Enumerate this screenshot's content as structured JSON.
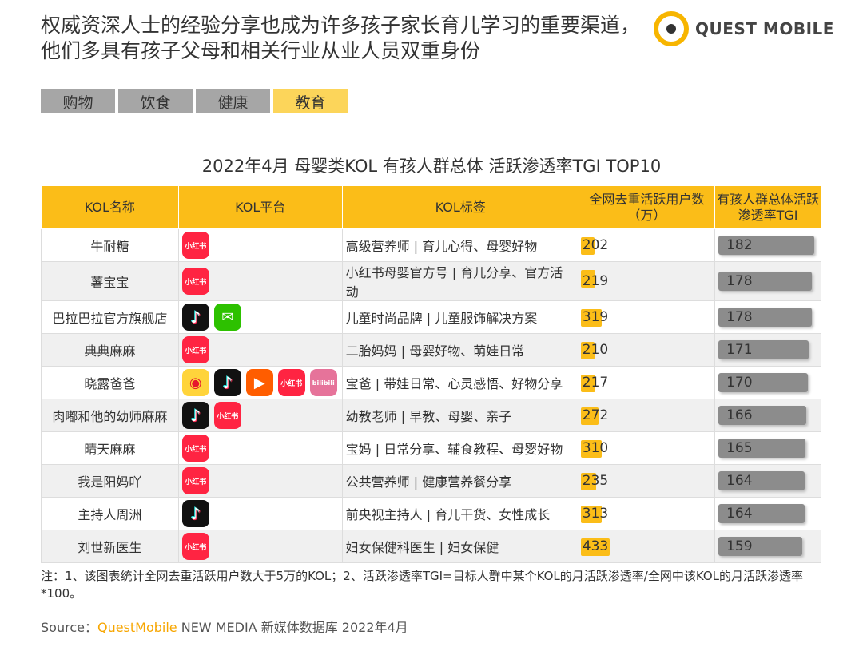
{
  "title": "权威资深人士的经验分享也成为许多孩子家长育儿学习的重要渠道，他们多具有孩子父母和相关行业从业人员双重身份",
  "logo": "QUEST MOBILE",
  "tabs": [
    {
      "label": "购物",
      "active": false
    },
    {
      "label": "饮食",
      "active": false
    },
    {
      "label": "健康",
      "active": false
    },
    {
      "label": "教育",
      "active": true
    }
  ],
  "subtitle": "2022年4月 母婴类KOL 有孩人群总体 活跃渗透率TGI TOP10",
  "headers": {
    "name": "KOL名称",
    "platform": "KOL平台",
    "tags": "KOL标签",
    "users": "全网去重活跃用户数（万）",
    "tgi": "有孩人群总体活跃渗透率TGI"
  },
  "colors": {
    "accent": "#fbbd18",
    "tgi_bar": "#8c8c8c"
  },
  "rows": [
    {
      "name": "牛耐糖",
      "platforms": [
        "xiaohongshu"
      ],
      "tags": "高级营养师 | 育儿心得、母婴好物",
      "users": "202",
      "tgi": "182"
    },
    {
      "name": "薯宝宝",
      "platforms": [
        "xiaohongshu"
      ],
      "tags": "小红书母婴官方号 | 育儿分享、官方活动",
      "users": "219",
      "tgi": "178"
    },
    {
      "name": "巴拉巴拉官方旗舰店",
      "platforms": [
        "douyin",
        "wechat"
      ],
      "tags": "儿童时尚品牌 | 儿童服饰解决方案",
      "users": "319",
      "tgi": "178"
    },
    {
      "name": "典典麻麻",
      "platforms": [
        "xiaohongshu"
      ],
      "tags": "二胎妈妈 | 母婴好物、萌娃日常",
      "users": "210",
      "tgi": "171"
    },
    {
      "name": "晓露爸爸",
      "platforms": [
        "weibo",
        "douyin",
        "kuaishou",
        "xiaohongshu",
        "bilibili"
      ],
      "tags": "宝爸 | 带娃日常、心灵感悟、好物分享",
      "users": "217",
      "tgi": "170"
    },
    {
      "name": "肉嘟和他的幼师麻麻",
      "platforms": [
        "douyin",
        "xiaohongshu"
      ],
      "tags": "幼教老师 | 早教、母婴、亲子",
      "users": "272",
      "tgi": "166"
    },
    {
      "name": "晴天麻麻",
      "platforms": [
        "xiaohongshu"
      ],
      "tags": "宝妈 | 日常分享、辅食教程、母婴好物",
      "users": "310",
      "tgi": "165"
    },
    {
      "name": "我是阳妈吖",
      "platforms": [
        "xiaohongshu"
      ],
      "tags": "公共营养师 | 健康营养餐分享",
      "users": "235",
      "tgi": "164"
    },
    {
      "name": "主持人周洲",
      "platforms": [
        "douyin"
      ],
      "tags": "前央视主持人 | 育儿干货、女性成长",
      "users": "313",
      "tgi": "164"
    },
    {
      "name": "刘世新医生",
      "platforms": [
        "xiaohongshu"
      ],
      "tags": "妇女保健科医生 | 妇女保健",
      "users": "433",
      "tgi": "159"
    }
  ],
  "note": "注：1、该图表统计全网去重活跃用户数大于5万的KOL；2、活跃渗透率TGI=目标人群中某个KOL的月活跃渗透率/全网中该KOL的月活跃渗透率*100。",
  "source": {
    "prefix": "Source：",
    "brand": "QuestMobile",
    "rest": " NEW MEDIA 新媒体数据库 2022年4月"
  }
}
